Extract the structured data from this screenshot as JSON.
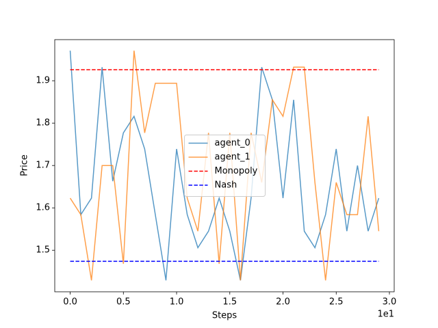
{
  "chart_data": {
    "type": "line",
    "xlabel": "Steps",
    "ylabel": "Price",
    "x_offset_label": "1e1",
    "x": [
      0,
      1,
      2,
      3,
      4,
      5,
      6,
      7,
      8,
      9,
      10,
      11,
      12,
      13,
      14,
      15,
      16,
      17,
      18,
      19,
      20,
      21,
      22,
      23,
      24,
      25,
      26,
      27,
      28,
      29
    ],
    "series": [
      {
        "name": "agent_0",
        "color": "#1f77b4",
        "values": [
          1.971,
          1.584,
          1.623,
          1.932,
          1.663,
          1.777,
          1.816,
          1.739,
          1.584,
          1.429,
          1.739,
          1.584,
          1.506,
          1.545,
          1.623,
          1.545,
          1.429,
          1.623,
          1.932,
          1.855,
          1.623,
          1.855,
          1.545,
          1.506,
          1.584,
          1.739,
          1.545,
          1.7,
          1.545,
          1.623
        ]
      },
      {
        "name": "agent_1",
        "color": "#ff7f0e",
        "values": [
          1.623,
          1.584,
          1.429,
          1.7,
          1.7,
          1.468,
          1.971,
          1.777,
          1.894,
          1.894,
          1.894,
          1.623,
          1.545,
          1.777,
          1.468,
          1.777,
          1.429,
          1.777,
          1.66,
          1.855,
          1.816,
          1.932,
          1.932,
          1.66,
          1.429,
          1.66,
          1.584,
          1.584,
          1.816,
          1.545
        ]
      },
      {
        "name": "Monopoly",
        "color": "#ff0000",
        "dashed": true,
        "x": [
          0,
          29
        ],
        "values": [
          1.926,
          1.926
        ]
      },
      {
        "name": "Nash",
        "color": "#0000ff",
        "dashed": true,
        "x": [
          0,
          29
        ],
        "values": [
          1.474,
          1.474
        ]
      }
    ],
    "xlim": [
      -1.45,
      30.45
    ],
    "xticks": [
      {
        "value": 0,
        "label": "0.0"
      },
      {
        "value": 5,
        "label": "0.5"
      },
      {
        "value": 10,
        "label": "1.0"
      },
      {
        "value": 15,
        "label": "1.5"
      },
      {
        "value": 20,
        "label": "2.0"
      },
      {
        "value": 25,
        "label": "2.5"
      },
      {
        "value": 30,
        "label": "3.0"
      }
    ],
    "ylim": [
      1.402,
      1.997
    ],
    "yticks": [
      {
        "value": 1.5,
        "label": "1.5"
      },
      {
        "value": 1.6,
        "label": "1.6"
      },
      {
        "value": 1.7,
        "label": "1.7"
      },
      {
        "value": 1.8,
        "label": "1.8"
      },
      {
        "value": 1.9,
        "label": "1.9"
      }
    ],
    "legend": "center",
    "grid": false
  }
}
